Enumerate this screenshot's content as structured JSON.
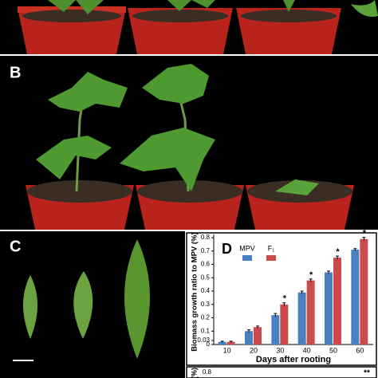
{
  "panels": {
    "b_label": "B",
    "c_label": "C",
    "bottom_axis_label": "(%)",
    "bottom_tick": "0.8",
    "bottom_mark": "**"
  },
  "chart_data": {
    "type": "bar",
    "panel_label": "D",
    "y_label": "Biomass growth ratio to MPV (%)",
    "x_label": "Days after rooting",
    "categories": [
      "10",
      "20",
      "30",
      "40",
      "50",
      "60"
    ],
    "series": [
      {
        "name": "MPV",
        "color": "#4a7fc1",
        "values": [
          0.02,
          0.1,
          0.22,
          0.39,
          0.54,
          0.71
        ],
        "errors": [
          0.005,
          0.01,
          0.012,
          0.01,
          0.01,
          0.008
        ]
      },
      {
        "name": "F₁",
        "color": "#cc4a4a",
        "values": [
          0.02,
          0.13,
          0.3,
          0.48,
          0.65,
          0.79
        ],
        "errors": [
          0.005,
          0.008,
          0.012,
          0.01,
          0.012,
          0.012
        ]
      }
    ],
    "annotations": [
      {
        "category": "30",
        "text": "*"
      },
      {
        "category": "40",
        "text": "*"
      },
      {
        "category": "50",
        "text": "*"
      },
      {
        "category": "60",
        "text": "*"
      }
    ],
    "ylim": [
      0,
      0.8
    ],
    "yticks": [
      0,
      0.03,
      0.1,
      0.2,
      0.3,
      0.4,
      0.5,
      0.6,
      0.7,
      0.8
    ],
    "legend": "top-left"
  }
}
